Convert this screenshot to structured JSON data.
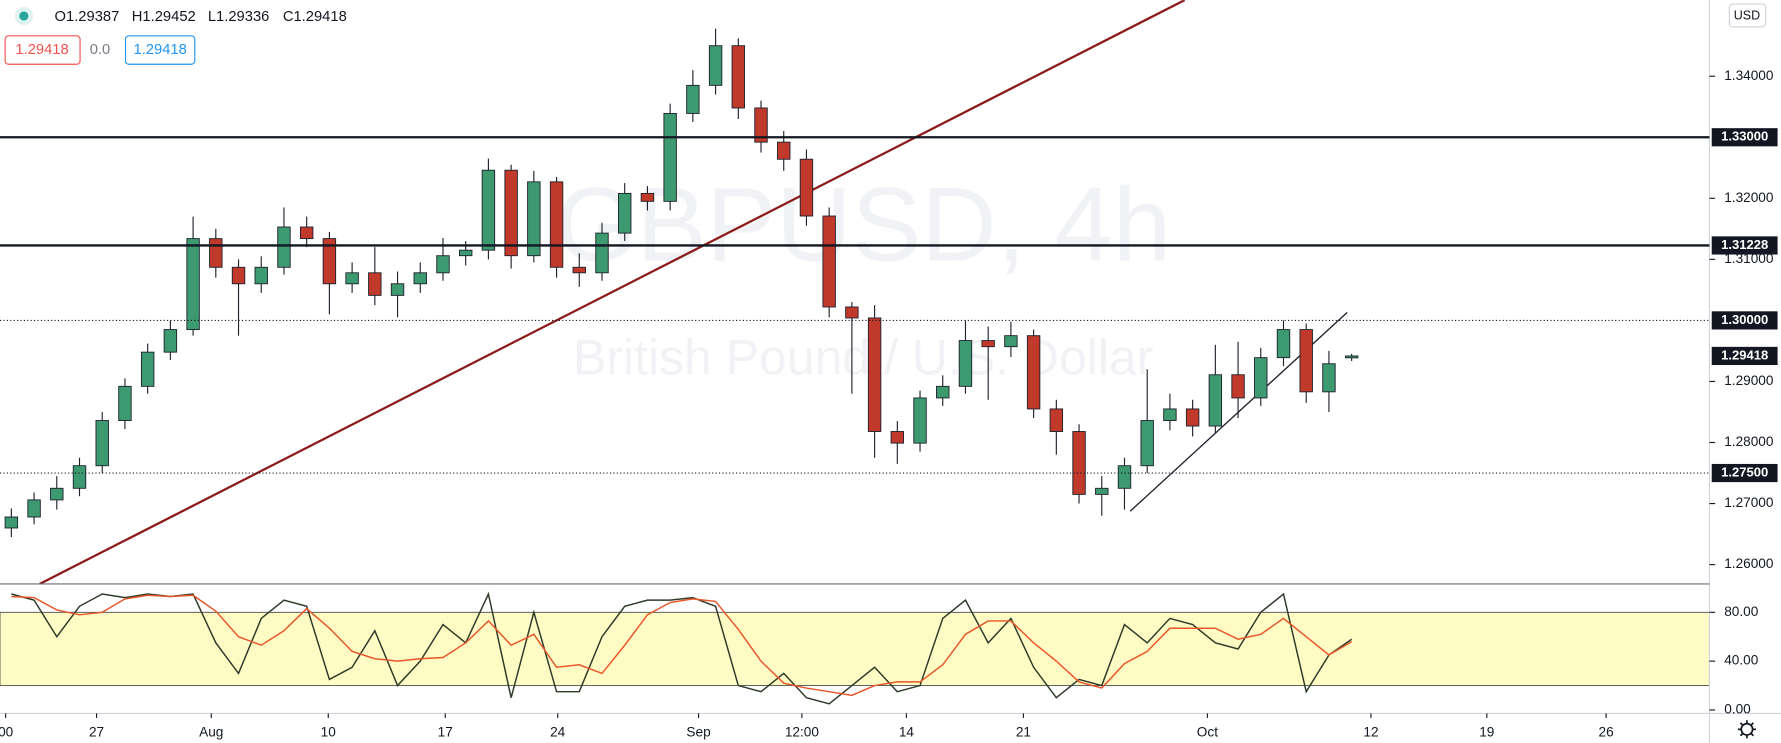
{
  "chart_data": [
    {
      "type": "candlestick",
      "title": "GBPUSD, 4h",
      "subtitle": "British Pound / U.S. Dollar",
      "ohlc_labels": [
        "O1.29387",
        "H1.29452",
        "L1.29336",
        "C1.29418"
      ],
      "quote": {
        "bid": "1.29418",
        "spread": "0.0",
        "ask": "1.29418"
      },
      "currency": "USD",
      "open": [
        1.266,
        1.2678,
        1.2706,
        1.2725,
        1.2762,
        1.2836,
        1.2892,
        1.2948,
        1.2985,
        1.3134,
        1.3087,
        1.306,
        1.3087,
        1.3153,
        1.3134,
        1.306,
        1.3078,
        1.3041,
        1.306,
        1.3078,
        1.3106,
        1.3115,
        1.3246,
        1.3106,
        1.3227,
        1.3087,
        1.3078,
        1.3143,
        1.3208,
        1.3195,
        1.3339,
        1.3385,
        1.345,
        1.3348,
        1.3292,
        1.3264,
        1.3171,
        1.3022,
        1.3004,
        1.2818,
        1.2799,
        1.2873,
        1.2892,
        1.2967,
        1.2957,
        1.2975,
        1.2855,
        1.2818,
        1.2715,
        1.2725,
        1.2762,
        1.2836,
        1.2855,
        1.2827,
        1.2911,
        1.2873,
        1.2939,
        1.2985,
        1.2883,
        1.29387
      ],
      "high": [
        1.2692,
        1.2718,
        1.2745,
        1.2775,
        1.285,
        1.2905,
        1.2962,
        1.3,
        1.317,
        1.315,
        1.31,
        1.3105,
        1.3185,
        1.317,
        1.3145,
        1.3095,
        1.312,
        1.308,
        1.3095,
        1.3135,
        1.313,
        1.3265,
        1.3255,
        1.3245,
        1.3235,
        1.311,
        1.316,
        1.3225,
        1.322,
        1.3355,
        1.341,
        1.3478,
        1.3462,
        1.336,
        1.331,
        1.328,
        1.3185,
        1.303,
        1.3025,
        1.2835,
        1.2885,
        1.291,
        1.3,
        1.299,
        1.2998,
        1.2985,
        1.287,
        1.283,
        1.2745,
        1.2775,
        1.292,
        1.288,
        1.287,
        1.296,
        1.2965,
        1.2955,
        1.3,
        1.2995,
        1.295,
        1.29452
      ],
      "low": [
        1.2645,
        1.2666,
        1.269,
        1.2712,
        1.275,
        1.2822,
        1.288,
        1.2935,
        1.2975,
        1.307,
        1.2975,
        1.3045,
        1.3075,
        1.312,
        1.301,
        1.3045,
        1.3025,
        1.3005,
        1.3045,
        1.3065,
        1.309,
        1.31,
        1.3085,
        1.3095,
        1.307,
        1.3055,
        1.3065,
        1.313,
        1.318,
        1.318,
        1.3325,
        1.337,
        1.333,
        1.3275,
        1.3245,
        1.3155,
        1.3005,
        1.288,
        1.2775,
        1.2765,
        1.2785,
        1.286,
        1.288,
        1.287,
        1.294,
        1.284,
        1.278,
        1.27,
        1.268,
        1.269,
        1.275,
        1.282,
        1.281,
        1.2815,
        1.284,
        1.286,
        1.2925,
        1.2865,
        1.285,
        1.29336
      ],
      "close": [
        1.2678,
        1.2706,
        1.2725,
        1.2762,
        1.2836,
        1.2892,
        1.2948,
        1.2985,
        1.3134,
        1.3087,
        1.306,
        1.3087,
        1.3153,
        1.3134,
        1.306,
        1.3078,
        1.3041,
        1.306,
        1.3078,
        1.3106,
        1.3115,
        1.3246,
        1.3106,
        1.3227,
        1.3087,
        1.3078,
        1.3143,
        1.3208,
        1.3195,
        1.3339,
        1.3385,
        1.345,
        1.3348,
        1.3292,
        1.3264,
        1.3171,
        1.3022,
        1.3004,
        1.2818,
        1.2799,
        1.2873,
        1.2892,
        1.2967,
        1.2957,
        1.2975,
        1.2855,
        1.2818,
        1.2715,
        1.2725,
        1.2762,
        1.2836,
        1.2855,
        1.2827,
        1.2911,
        1.2873,
        1.2939,
        1.2985,
        1.2883,
        1.2929,
        1.29418
      ],
      "up_color": "#3d9970",
      "down_color": "#c0392b",
      "wick_color": "#1e222d",
      "xlim": [
        0,
        75.25
      ],
      "ylim": [
        1.25684,
        1.35247
      ],
      "yticks": [
        {
          "value": 1.26,
          "label": "1.26000"
        },
        {
          "value": 1.27,
          "label": "1.27000"
        },
        {
          "value": 1.28,
          "label": "1.28000"
        },
        {
          "value": 1.29,
          "label": "1.29000"
        },
        {
          "value": 1.31,
          "label": "1.31000"
        },
        {
          "value": 1.32,
          "label": "1.32000"
        },
        {
          "value": 1.34,
          "label": "1.34000"
        }
      ],
      "levels": [
        {
          "value": 1.33,
          "label": "1.33000",
          "style": "solid"
        },
        {
          "value": 1.31228,
          "label": "1.31228",
          "style": "solid"
        },
        {
          "value": 1.3,
          "label": "1.30000",
          "style": "dotted"
        },
        {
          "value": 1.29418,
          "label": "1.29418",
          "style": "none"
        },
        {
          "value": 1.275,
          "label": "1.27500",
          "style": "dotted"
        }
      ],
      "trendlines": [
        {
          "x": [
            1.75,
            52.15
          ],
          "y": [
            1.25684,
            1.35247
          ],
          "color": "#8b1a1a"
        },
        {
          "x": [
            49.75,
            59.3
          ],
          "y": [
            1.26874,
            1.3013
          ],
          "color": "#1e222d"
        }
      ]
    },
    {
      "type": "line",
      "series": [
        {
          "color": "#2e3b2a",
          "values": [
            95,
            90,
            60,
            85,
            95,
            92,
            95,
            93,
            95,
            55,
            30,
            75,
            90,
            85,
            25,
            35,
            65,
            20,
            40,
            70,
            55,
            95,
            10,
            80,
            15,
            15,
            60,
            85,
            90,
            90,
            92,
            85,
            20,
            15,
            30,
            10,
            5,
            20,
            35,
            15,
            20,
            75,
            90,
            55,
            75,
            35,
            10,
            25,
            20,
            70,
            55,
            75,
            70,
            55,
            50,
            80,
            95,
            15,
            45,
            58
          ]
        },
        {
          "color": "#e8562a",
          "values": [
            93,
            92,
            82,
            78,
            80,
            91,
            94,
            93,
            94,
            81,
            60,
            53,
            65,
            83,
            67,
            48,
            42,
            40,
            42,
            43,
            55,
            73,
            53,
            62,
            35,
            37,
            30,
            53,
            78,
            88,
            91,
            89,
            66,
            40,
            22,
            18,
            15,
            12,
            20,
            23,
            23,
            37,
            62,
            73,
            73,
            55,
            40,
            23,
            18,
            38,
            48,
            67,
            67,
            67,
            58,
            62,
            75,
            60,
            45,
            56
          ]
        }
      ],
      "band": [
        20,
        80
      ],
      "band_color": "#fffbc4",
      "xlim": [
        0,
        75.25
      ],
      "ylim": [
        -2.8,
        103.3
      ],
      "yticks": [
        {
          "value": 0,
          "label": "0.00"
        },
        {
          "value": 40,
          "label": "40.00"
        },
        {
          "value": 80,
          "label": "80.00"
        }
      ],
      "xticks": [
        {
          "value": 0.25,
          "label": "00"
        },
        {
          "value": 4.25,
          "label": "27"
        },
        {
          "value": 9.3,
          "label": "Aug"
        },
        {
          "value": 14.45,
          "label": "10"
        },
        {
          "value": 19.6,
          "label": "17"
        },
        {
          "value": 24.55,
          "label": "24"
        },
        {
          "value": 30.75,
          "label": "Sep"
        },
        {
          "value": 35.3,
          "label": "12:00"
        },
        {
          "value": 39.9,
          "label": "14"
        },
        {
          "value": 45.05,
          "label": "21"
        },
        {
          "value": 53.15,
          "label": "Oct"
        },
        {
          "value": 60.35,
          "label": "12"
        },
        {
          "value": 65.45,
          "label": "19"
        },
        {
          "value": 70.7,
          "label": "26"
        }
      ]
    }
  ]
}
